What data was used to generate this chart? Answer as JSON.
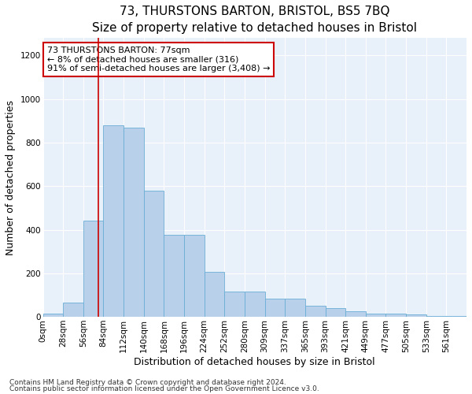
{
  "title": "73, THURSTONS BARTON, BRISTOL, BS5 7BQ",
  "subtitle": "Size of property relative to detached houses in Bristol",
  "xlabel": "Distribution of detached houses by size in Bristol",
  "ylabel": "Number of detached properties",
  "footnote1": "Contains HM Land Registry data © Crown copyright and database right 2024.",
  "footnote2": "Contains public sector information licensed under the Open Government Licence v3.0.",
  "bin_labels": [
    "0sqm",
    "28sqm",
    "56sqm",
    "84sqm",
    "112sqm",
    "140sqm",
    "168sqm",
    "196sqm",
    "224sqm",
    "252sqm",
    "280sqm",
    "309sqm",
    "337sqm",
    "365sqm",
    "393sqm",
    "421sqm",
    "449sqm",
    "477sqm",
    "505sqm",
    "533sqm",
    "561sqm"
  ],
  "bar_values": [
    15,
    65,
    440,
    880,
    870,
    580,
    375,
    375,
    205,
    115,
    115,
    85,
    85,
    50,
    40,
    25,
    15,
    15,
    10,
    5,
    5
  ],
  "bar_color": "#b8d0ea",
  "bar_edgecolor": "#6aaed6",
  "vline_x_idx": 2.75,
  "vline_color": "#cc0000",
  "annotation_text": "73 THURSTONS BARTON: 77sqm\n← 8% of detached houses are smaller (316)\n91% of semi-detached houses are larger (3,408) →",
  "annotation_box_edgecolor": "#cc0000",
  "annotation_box_facecolor": "white",
  "ylim": [
    0,
    1280
  ],
  "yticks": [
    0,
    200,
    400,
    600,
    800,
    1000,
    1200
  ],
  "bg_color": "#e8f0fa",
  "title_fontsize": 11,
  "xlabel_fontsize": 9,
  "ylabel_fontsize": 9,
  "tick_fontsize": 7.5,
  "annot_fontsize": 8,
  "footnote_fontsize": 6.5
}
